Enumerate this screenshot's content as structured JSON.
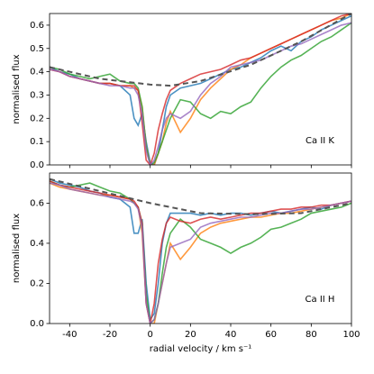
{
  "chart_data": [
    {
      "type": "line",
      "ylabel": "normalised flux",
      "annotation": "Ca II K",
      "xlim": [
        -50,
        100
      ],
      "ylim": [
        0,
        0.65
      ],
      "yticks": [
        {
          "value": 0,
          "label": "0.0"
        },
        {
          "value": 0.1,
          "label": "0.1"
        },
        {
          "value": 0.2,
          "label": "0.2"
        },
        {
          "value": 0.3,
          "label": "0.3"
        },
        {
          "value": 0.4,
          "label": "0.4"
        },
        {
          "value": 0.5,
          "label": "0.5"
        },
        {
          "value": 0.6,
          "label": "0.6"
        }
      ],
      "x": [
        -50,
        -45,
        -40,
        -35,
        -30,
        -25,
        -20,
        -15,
        -10,
        -8,
        -6,
        -4,
        -2,
        0,
        2,
        4,
        6,
        8,
        10,
        15,
        20,
        25,
        30,
        35,
        40,
        45,
        50,
        55,
        60,
        65,
        70,
        75,
        80,
        85,
        90,
        95,
        100
      ],
      "series": [
        {
          "color": "#1f77b4",
          "values": [
            0.42,
            0.4,
            0.39,
            0.37,
            0.36,
            0.35,
            0.35,
            0.34,
            0.3,
            0.2,
            0.17,
            0.22,
            0.1,
            0.01,
            0.0,
            0.05,
            0.15,
            0.25,
            0.3,
            0.33,
            0.34,
            0.35,
            0.37,
            0.39,
            0.41,
            0.42,
            0.44,
            0.46,
            0.49,
            0.51,
            0.49,
            0.53,
            0.55,
            0.58,
            0.6,
            0.62,
            0.64
          ]
        },
        {
          "color": "#ff7f0e",
          "values": [
            0.41,
            0.4,
            0.38,
            0.37,
            0.36,
            0.35,
            0.35,
            0.34,
            0.34,
            0.33,
            0.32,
            0.25,
            0.08,
            0.0,
            0.0,
            0.05,
            0.1,
            0.18,
            0.23,
            0.14,
            0.2,
            0.28,
            0.33,
            0.37,
            0.41,
            0.43,
            0.46,
            0.48,
            0.5,
            0.52,
            0.54,
            0.56,
            0.58,
            0.6,
            0.62,
            0.63,
            0.65
          ]
        },
        {
          "color": "#2ca02c",
          "values": [
            0.42,
            0.41,
            0.39,
            0.38,
            0.37,
            0.38,
            0.39,
            0.36,
            0.35,
            0.35,
            0.33,
            0.25,
            0.08,
            0.0,
            0.01,
            0.05,
            0.1,
            0.15,
            0.2,
            0.28,
            0.27,
            0.22,
            0.2,
            0.23,
            0.22,
            0.25,
            0.27,
            0.33,
            0.38,
            0.42,
            0.45,
            0.47,
            0.5,
            0.53,
            0.55,
            0.58,
            0.61
          ]
        },
        {
          "color": "#d62728",
          "values": [
            0.41,
            0.4,
            0.38,
            0.37,
            0.36,
            0.35,
            0.35,
            0.34,
            0.34,
            0.34,
            0.32,
            0.18,
            0.02,
            0.0,
            0.05,
            0.15,
            0.22,
            0.28,
            0.32,
            0.35,
            0.37,
            0.39,
            0.4,
            0.41,
            0.43,
            0.45,
            0.46,
            0.48,
            0.5,
            0.52,
            0.54,
            0.56,
            0.58,
            0.6,
            0.62,
            0.64,
            0.65
          ]
        },
        {
          "color": "#9467bd",
          "values": [
            0.41,
            0.4,
            0.38,
            0.37,
            0.36,
            0.35,
            0.34,
            0.34,
            0.33,
            0.33,
            0.3,
            0.22,
            0.06,
            0.0,
            0.02,
            0.08,
            0.15,
            0.2,
            0.22,
            0.2,
            0.23,
            0.3,
            0.35,
            0.38,
            0.42,
            0.43,
            0.44,
            0.45,
            0.47,
            0.49,
            0.51,
            0.52,
            0.54,
            0.56,
            0.58,
            0.6,
            0.61
          ]
        },
        {
          "color": "#555555",
          "dashed": true,
          "x": [
            -50,
            -25,
            0,
            10,
            25,
            50,
            75,
            100
          ],
          "values": [
            0.42,
            0.37,
            0.345,
            0.34,
            0.36,
            0.43,
            0.53,
            0.65
          ]
        }
      ]
    },
    {
      "type": "line",
      "ylabel": "normalised flux",
      "annotation": "Ca II H",
      "xlabel": "radial velocity / km s⁻¹",
      "xlim": [
        -50,
        100
      ],
      "ylim": [
        0,
        0.75
      ],
      "xticks": [
        -40,
        -20,
        0,
        20,
        40,
        60,
        80,
        100
      ],
      "yticks": [
        {
          "value": 0,
          "label": "0.0"
        },
        {
          "value": 0.2,
          "label": "0.2"
        },
        {
          "value": 0.4,
          "label": "0.4"
        },
        {
          "value": 0.6,
          "label": "0.6"
        }
      ],
      "x": [
        -50,
        -45,
        -40,
        -35,
        -30,
        -25,
        -20,
        -15,
        -10,
        -8,
        -6,
        -4,
        -2,
        0,
        2,
        4,
        6,
        8,
        10,
        15,
        20,
        25,
        30,
        35,
        40,
        45,
        50,
        55,
        60,
        65,
        70,
        75,
        80,
        85,
        90,
        95,
        100
      ],
      "series": [
        {
          "color": "#1f77b4",
          "values": [
            0.72,
            0.7,
            0.69,
            0.68,
            0.66,
            0.65,
            0.63,
            0.62,
            0.58,
            0.45,
            0.45,
            0.52,
            0.2,
            0.02,
            0.05,
            0.2,
            0.4,
            0.5,
            0.55,
            0.55,
            0.55,
            0.54,
            0.55,
            0.54,
            0.55,
            0.55,
            0.54,
            0.55,
            0.56,
            0.55,
            0.56,
            0.57,
            0.58,
            0.57,
            0.59,
            0.6,
            0.61
          ]
        },
        {
          "color": "#ff7f0e",
          "values": [
            0.7,
            0.68,
            0.67,
            0.66,
            0.65,
            0.64,
            0.64,
            0.63,
            0.62,
            0.6,
            0.58,
            0.45,
            0.1,
            0.0,
            0.0,
            0.1,
            0.2,
            0.3,
            0.4,
            0.32,
            0.38,
            0.45,
            0.48,
            0.5,
            0.51,
            0.52,
            0.53,
            0.53,
            0.54,
            0.55,
            0.55,
            0.56,
            0.57,
            0.58,
            0.59,
            0.6,
            0.61
          ]
        },
        {
          "color": "#2ca02c",
          "values": [
            0.71,
            0.69,
            0.68,
            0.69,
            0.7,
            0.68,
            0.66,
            0.65,
            0.62,
            0.6,
            0.58,
            0.5,
            0.15,
            0.0,
            0.02,
            0.1,
            0.25,
            0.38,
            0.45,
            0.52,
            0.48,
            0.42,
            0.4,
            0.38,
            0.35,
            0.38,
            0.4,
            0.43,
            0.47,
            0.48,
            0.5,
            0.52,
            0.55,
            0.56,
            0.57,
            0.58,
            0.6
          ]
        },
        {
          "color": "#d62728",
          "values": [
            0.71,
            0.69,
            0.68,
            0.67,
            0.66,
            0.65,
            0.64,
            0.63,
            0.62,
            0.61,
            0.58,
            0.5,
            0.1,
            0.0,
            0.1,
            0.3,
            0.42,
            0.5,
            0.53,
            0.51,
            0.5,
            0.52,
            0.53,
            0.52,
            0.53,
            0.54,
            0.55,
            0.55,
            0.56,
            0.57,
            0.57,
            0.58,
            0.58,
            0.59,
            0.59,
            0.6,
            0.61
          ]
        },
        {
          "color": "#9467bd",
          "values": [
            0.7,
            0.69,
            0.67,
            0.66,
            0.65,
            0.64,
            0.63,
            0.62,
            0.61,
            0.6,
            0.57,
            0.48,
            0.1,
            0.0,
            0.02,
            0.1,
            0.2,
            0.3,
            0.38,
            0.4,
            0.42,
            0.48,
            0.5,
            0.51,
            0.52,
            0.53,
            0.53,
            0.54,
            0.55,
            0.55,
            0.56,
            0.57,
            0.57,
            0.58,
            0.59,
            0.6,
            0.61
          ]
        },
        {
          "color": "#555555",
          "dashed": true,
          "x": [
            -50,
            -25,
            0,
            15,
            25,
            50,
            75,
            100
          ],
          "values": [
            0.72,
            0.66,
            0.6,
            0.57,
            0.55,
            0.545,
            0.55,
            0.6
          ]
        }
      ]
    }
  ]
}
